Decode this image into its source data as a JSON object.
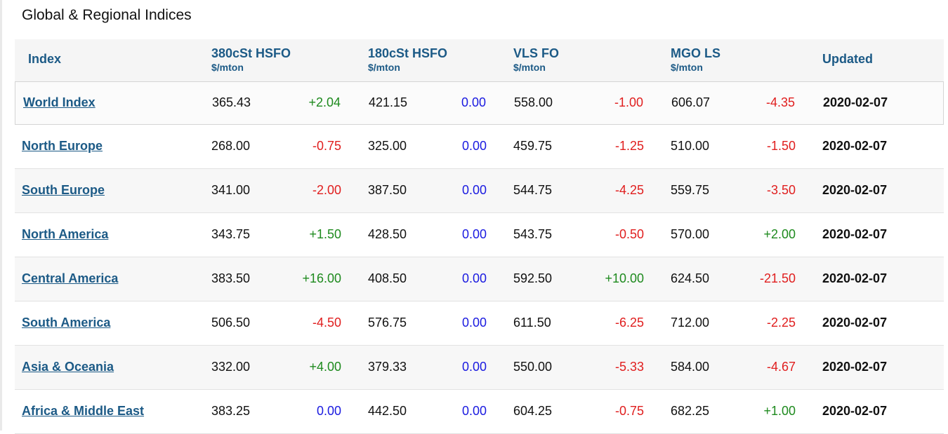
{
  "title": "Global & Regional Indices",
  "columns": {
    "index": "Index",
    "hsfo380": {
      "name": "380cSt HSFO",
      "unit": "$/mton"
    },
    "hsfo180": {
      "name": "180cSt HSFO",
      "unit": "$/mton"
    },
    "vlsfo": {
      "name": "VLS FO",
      "unit": "$/mton"
    },
    "mgo": {
      "name": "MGO LS",
      "unit": "$/mton"
    },
    "updated": "Updated"
  },
  "colors": {
    "up": "#1e8a1e",
    "down": "#e01e1e",
    "unchanged": "#1a1ae0",
    "header_text": "#1c5a86"
  },
  "rows": [
    {
      "name": "World Index",
      "hsfo380": "365.43",
      "hsfo380_chg": "+2.04",
      "hsfo180": "421.15",
      "hsfo180_chg": "0.00",
      "vlsfo": "558.00",
      "vlsfo_chg": "-1.00",
      "mgo": "606.07",
      "mgo_chg": "-4.35",
      "updated": "2020-02-07"
    },
    {
      "name": "North Europe",
      "hsfo380": "268.00",
      "hsfo380_chg": "-0.75",
      "hsfo180": "325.00",
      "hsfo180_chg": "0.00",
      "vlsfo": "459.75",
      "vlsfo_chg": "-1.25",
      "mgo": "510.00",
      "mgo_chg": "-1.50",
      "updated": "2020-02-07"
    },
    {
      "name": "South Europe",
      "hsfo380": "341.00",
      "hsfo380_chg": "-2.00",
      "hsfo180": "387.50",
      "hsfo180_chg": "0.00",
      "vlsfo": "544.75",
      "vlsfo_chg": "-4.25",
      "mgo": "559.75",
      "mgo_chg": "-3.50",
      "updated": "2020-02-07"
    },
    {
      "name": "North America",
      "hsfo380": "343.75",
      "hsfo380_chg": "+1.50",
      "hsfo180": "428.50",
      "hsfo180_chg": "0.00",
      "vlsfo": "543.75",
      "vlsfo_chg": "-0.50",
      "mgo": "570.00",
      "mgo_chg": "+2.00",
      "updated": "2020-02-07"
    },
    {
      "name": "Central America",
      "hsfo380": "383.50",
      "hsfo380_chg": "+16.00",
      "hsfo180": "408.50",
      "hsfo180_chg": "0.00",
      "vlsfo": "592.50",
      "vlsfo_chg": "+10.00",
      "mgo": "624.50",
      "mgo_chg": "-21.50",
      "updated": "2020-02-07"
    },
    {
      "name": "South America",
      "hsfo380": "506.50",
      "hsfo380_chg": "-4.50",
      "hsfo180": "576.75",
      "hsfo180_chg": "0.00",
      "vlsfo": "611.50",
      "vlsfo_chg": "-6.25",
      "mgo": "712.00",
      "mgo_chg": "-2.25",
      "updated": "2020-02-07"
    },
    {
      "name": "Asia & Oceania",
      "hsfo380": "332.00",
      "hsfo380_chg": "+4.00",
      "hsfo180": "379.33",
      "hsfo180_chg": "0.00",
      "vlsfo": "550.00",
      "vlsfo_chg": "-5.33",
      "mgo": "584.00",
      "mgo_chg": "-4.67",
      "updated": "2020-02-07"
    },
    {
      "name": "Africa & Middle East",
      "hsfo380": "383.25",
      "hsfo380_chg": "0.00",
      "hsfo180": "442.50",
      "hsfo180_chg": "0.00",
      "vlsfo": "604.25",
      "vlsfo_chg": "-0.75",
      "mgo": "682.25",
      "mgo_chg": "+1.00",
      "updated": "2020-02-07"
    }
  ]
}
